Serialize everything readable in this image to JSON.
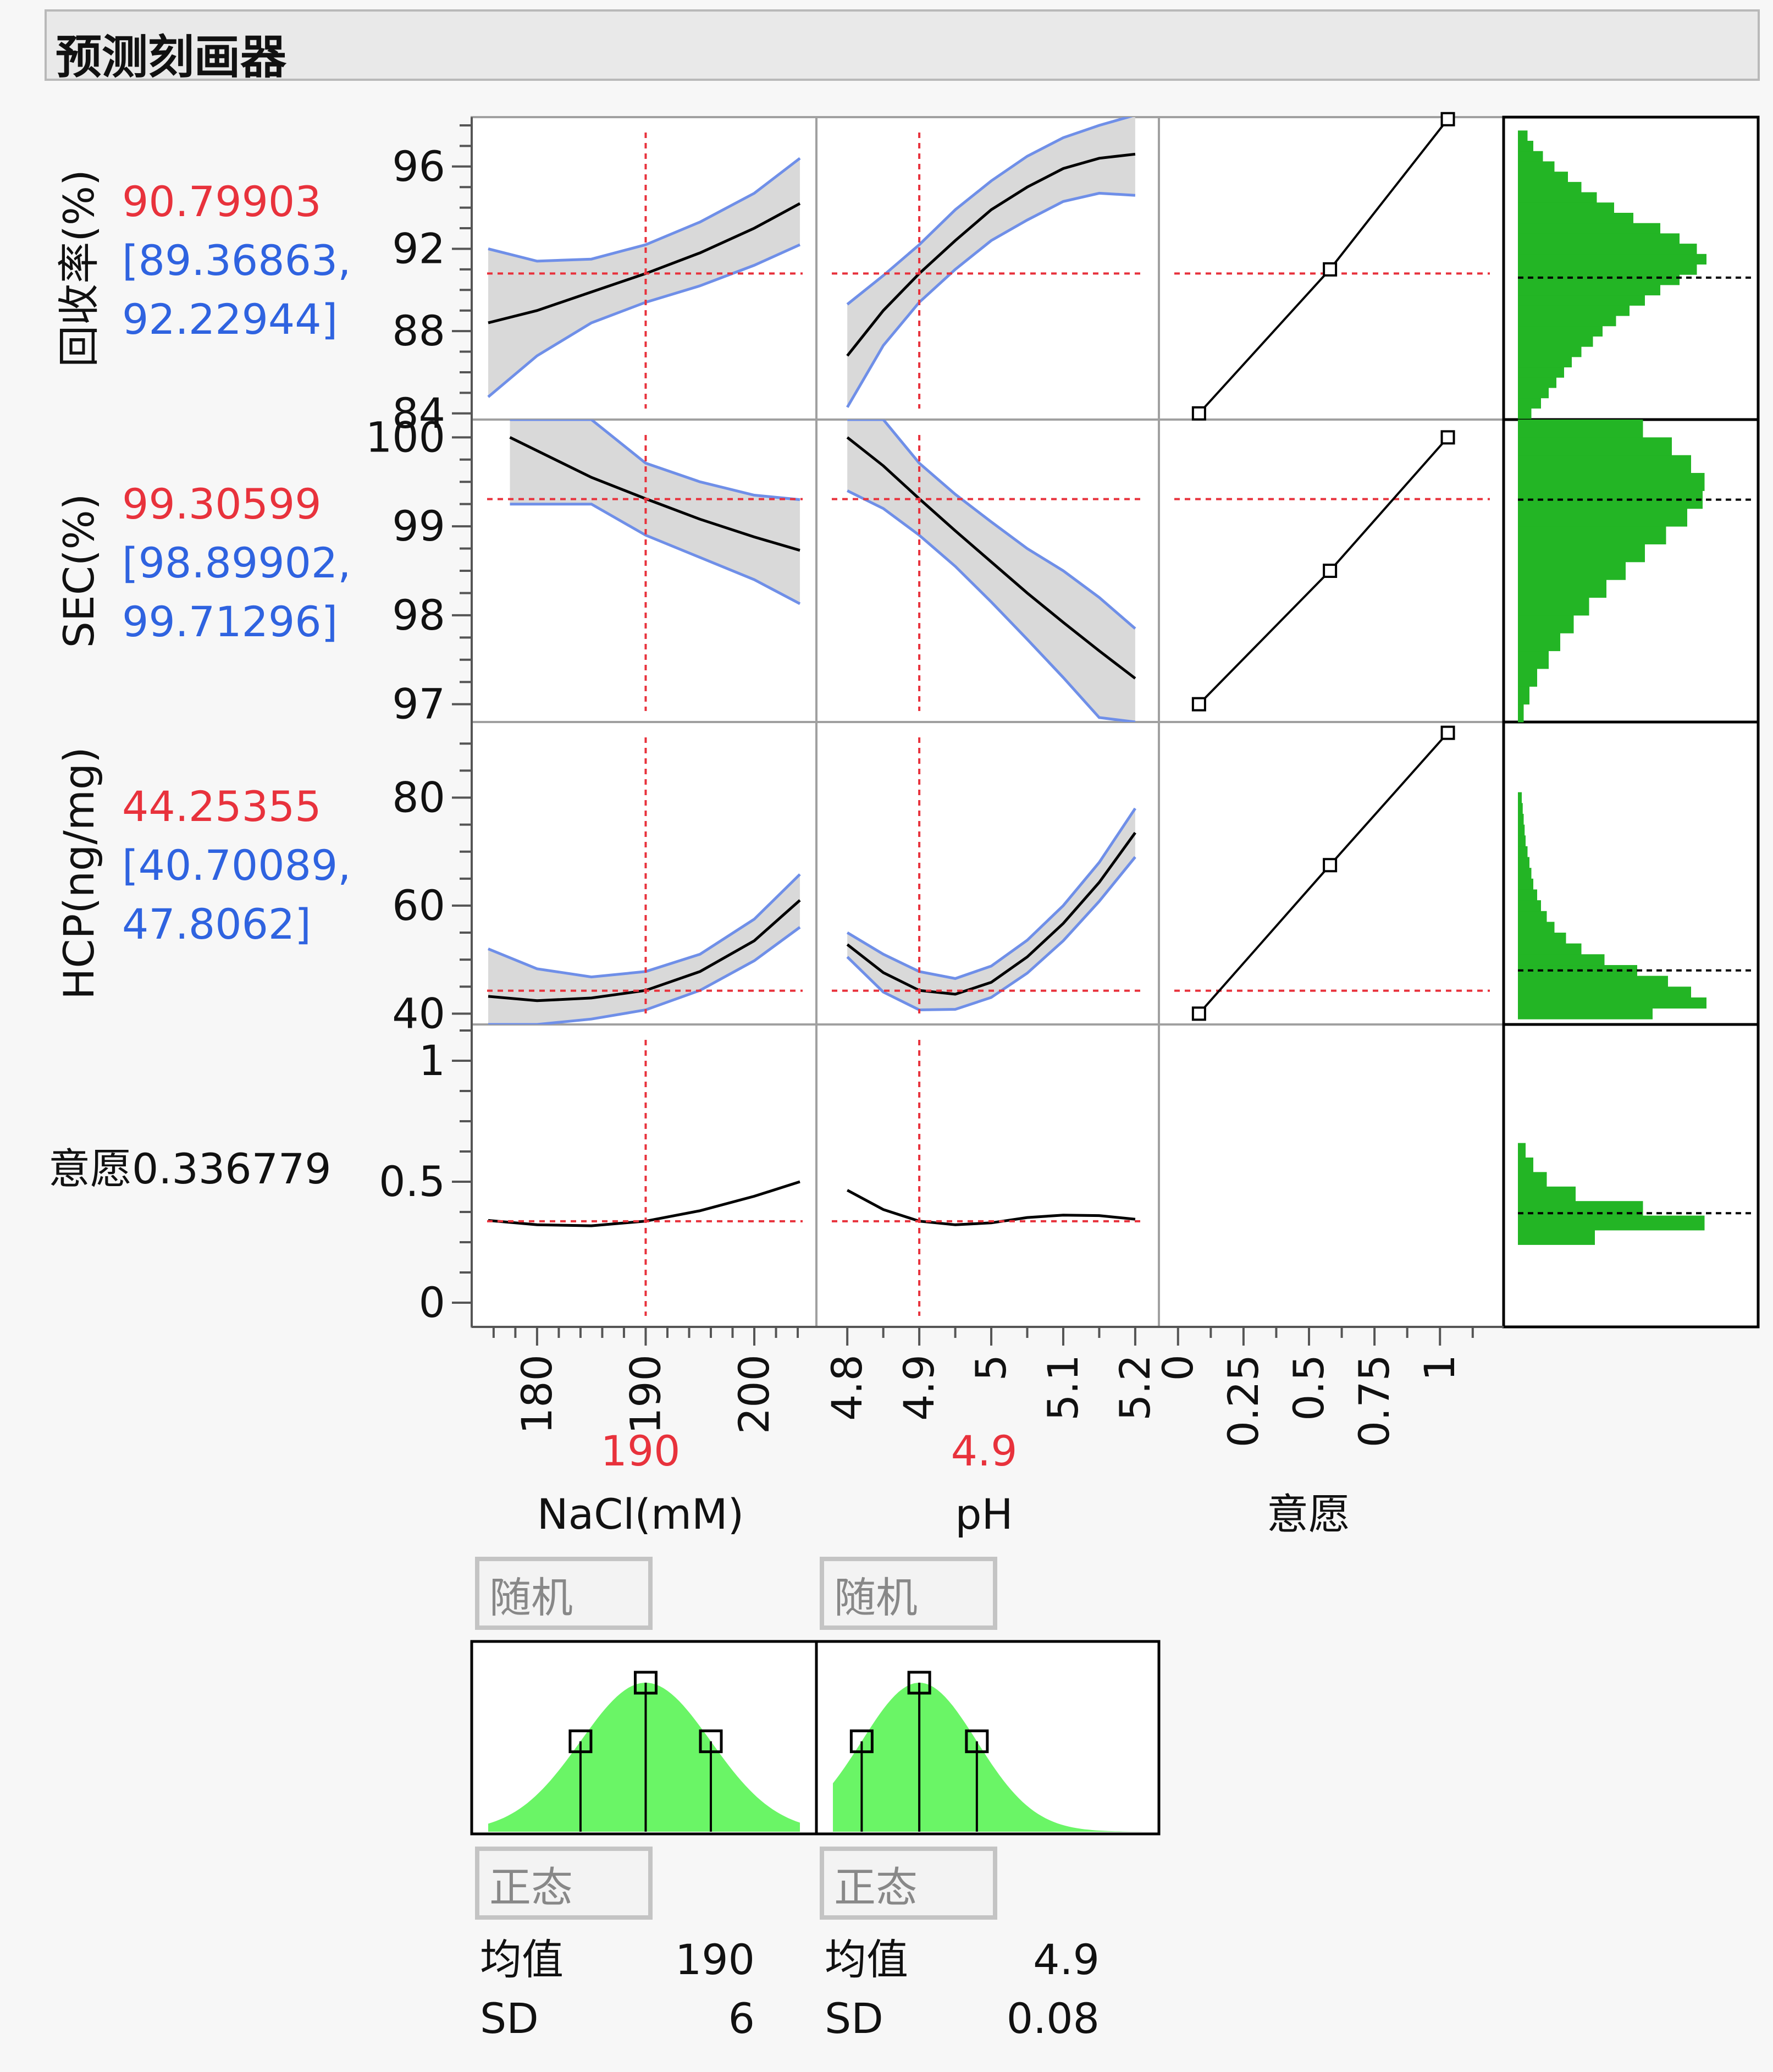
{
  "title": "预测刻画器",
  "colors": {
    "current_value": "#e8323c",
    "ci": "#2f63e0",
    "band": "#d9d9d9",
    "band_edge": "#6f8fe8",
    "curve": "#000000",
    "ref_line": "#e8323c",
    "histogram": "#23b525",
    "normal_fill": "#6af566",
    "panel_border": "#a0a0a0",
    "frame": "#000000"
  },
  "responses": [
    {
      "label": "回收率(%)",
      "value": "90.79903",
      "ci_low": "[89.36863,",
      "ci_high": "92.22944]"
    },
    {
      "label": "SEC(%)",
      "value": "99.30599",
      "ci_low": "[98.89902,",
      "ci_high": "99.71296]"
    },
    {
      "label": "HCP(ng/mg)",
      "value": "44.25355",
      "ci_low": "[40.70089,",
      "ci_high": "47.8062]"
    },
    {
      "label": "意愿",
      "value": "0.336779"
    }
  ],
  "factors": [
    {
      "name": "NaCl(mM)",
      "current": "190"
    },
    {
      "name": "pH",
      "current": "4.9"
    },
    {
      "name": "意愿",
      "current": ""
    }
  ],
  "distributions": [
    {
      "type_label": "正态",
      "random_label": "随机",
      "mean_label": "均值",
      "mean": "190",
      "sd_label": "SD",
      "sd": "6"
    },
    {
      "type_label": "正态",
      "random_label": "随机",
      "mean_label": "均值",
      "mean": "4.9",
      "sd_label": "SD",
      "sd": "0.08"
    }
  ],
  "chart_data": {
    "type": "line",
    "rows": [
      {
        "response": "回收率(%)",
        "ylim": [
          83.7,
          98.4
        ],
        "ticks": [
          84,
          88,
          92,
          96
        ],
        "current": 90.79903
      },
      {
        "response": "SEC(%)",
        "ylim": [
          96.8,
          100.2
        ],
        "ticks": [
          97,
          98,
          99,
          100
        ],
        "current": 99.30599
      },
      {
        "response": "HCP(ng/mg)",
        "ylim": [
          38,
          94
        ],
        "ticks": [
          40,
          60,
          80
        ],
        "current": 44.25355
      },
      {
        "response": "意愿",
        "ylim": [
          -0.1,
          1.15
        ],
        "ticks": [
          0,
          0.5,
          1
        ],
        "current": 0.336779
      }
    ],
    "columns": [
      {
        "factor": "NaCl(mM)",
        "xlim": [
          175.5,
          204.2
        ],
        "ticks": [
          180,
          190,
          200
        ],
        "tick_labels": [
          "180",
          "190",
          "200"
        ],
        "current": 190
      },
      {
        "factor": "pH",
        "xlim": [
          4.78,
          5.21
        ],
        "ticks": [
          4.8,
          4.9,
          5.0,
          5.1,
          5.2
        ],
        "tick_labels": [
          "4.8",
          "4.9",
          "5",
          "5.1",
          "5.2"
        ],
        "current": 4.9
      },
      {
        "factor": "意愿",
        "xlim": [
          -0.01,
          1.18
        ],
        "ticks": [
          0,
          0.25,
          0.5,
          0.75,
          1
        ],
        "tick_labels": [
          "0",
          "0.25",
          "0.5",
          "0.75",
          "1"
        ]
      }
    ],
    "curves": [
      [
        {
          "x": [
            175.5,
            180,
            185,
            190,
            195,
            200,
            204.2
          ],
          "y": [
            88.4,
            89.0,
            89.9,
            90.8,
            91.8,
            93.0,
            94.2
          ],
          "lo": [
            84.8,
            86.8,
            88.4,
            89.4,
            90.2,
            91.2,
            92.2
          ],
          "hi": [
            92.0,
            91.4,
            91.5,
            92.2,
            93.3,
            94.7,
            96.4
          ]
        },
        {
          "x": [
            4.8,
            4.85,
            4.9,
            4.95,
            5.0,
            5.05,
            5.1,
            5.15,
            5.2
          ],
          "y": [
            86.8,
            89.0,
            90.8,
            92.4,
            93.9,
            95.0,
            95.9,
            96.4,
            96.6
          ],
          "lo": [
            84.3,
            87.3,
            89.4,
            91.0,
            92.4,
            93.4,
            94.3,
            94.7,
            94.6
          ],
          "hi": [
            89.3,
            90.7,
            92.2,
            93.9,
            95.3,
            96.5,
            97.4,
            98.0,
            98.5
          ]
        }
      ],
      [
        {
          "x": [
            177.5,
            180,
            185,
            190,
            195,
            200,
            204.2
          ],
          "y": [
            100.0,
            99.85,
            99.55,
            99.31,
            99.08,
            98.88,
            98.73
          ],
          "lo": [
            99.25,
            99.25,
            99.25,
            98.9,
            98.65,
            98.4,
            98.13
          ],
          "hi": [
            100.2,
            100.2,
            100.2,
            99.71,
            99.5,
            99.35,
            99.3
          ]
        },
        {
          "x": [
            4.8,
            4.85,
            4.9,
            4.95,
            5.0,
            5.05,
            5.1,
            5.15,
            5.2
          ],
          "y": [
            100.0,
            99.68,
            99.31,
            98.95,
            98.6,
            98.25,
            97.92,
            97.6,
            97.29
          ],
          "lo": [
            99.4,
            99.2,
            98.9,
            98.55,
            98.15,
            97.73,
            97.3,
            96.85,
            96.8
          ],
          "hi": [
            100.2,
            100.2,
            99.71,
            99.36,
            99.05,
            98.75,
            98.5,
            98.2,
            97.85
          ]
        }
      ],
      [
        {
          "x": [
            175.5,
            180,
            185,
            190,
            195,
            200,
            204.2
          ],
          "y": [
            43.2,
            42.4,
            42.9,
            44.3,
            47.8,
            53.5,
            61.0
          ],
          "lo": [
            38.0,
            38.0,
            39.0,
            40.7,
            44.3,
            49.8,
            56.0
          ],
          "hi": [
            52.0,
            48.3,
            46.8,
            47.8,
            51.0,
            57.5,
            65.8
          ]
        },
        {
          "x": [
            4.8,
            4.85,
            4.9,
            4.95,
            5.0,
            5.05,
            5.1,
            5.15,
            5.2
          ],
          "y": [
            52.8,
            47.6,
            44.3,
            43.6,
            45.8,
            50.5,
            56.7,
            64.3,
            73.5
          ],
          "lo": [
            50.5,
            44.0,
            40.7,
            40.8,
            43.0,
            47.5,
            53.5,
            60.8,
            69.0
          ],
          "hi": [
            55.0,
            51.0,
            47.8,
            46.5,
            48.8,
            53.6,
            60.0,
            68.0,
            78.0
          ]
        }
      ],
      [
        {
          "x": [
            175.5,
            180,
            185,
            190,
            195,
            200,
            204.2
          ],
          "y": [
            0.34,
            0.322,
            0.318,
            0.337,
            0.38,
            0.44,
            0.5
          ]
        },
        {
          "x": [
            4.8,
            4.85,
            4.9,
            4.95,
            5.0,
            5.05,
            5.1,
            5.15,
            5.2
          ],
          "y": [
            0.465,
            0.385,
            0.337,
            0.322,
            0.33,
            0.352,
            0.362,
            0.36,
            0.345
          ]
        }
      ]
    ],
    "desirability": [
      {
        "x": [
          0.08,
          0.58,
          1.03
        ],
        "y": [
          84,
          91,
          98.3
        ]
      },
      {
        "x": [
          0.08,
          0.58,
          1.03
        ],
        "y": [
          97,
          98.5,
          100
        ]
      },
      {
        "x": [
          0.08,
          0.58,
          1.03
        ],
        "y": [
          40,
          67.5,
          92
        ]
      }
    ],
    "histograms": [
      {
        "mean": 90.6,
        "bins": [
          [
            84.0,
            0.07
          ],
          [
            84.5,
            0.12
          ],
          [
            85.0,
            0.16
          ],
          [
            85.5,
            0.2
          ],
          [
            86.0,
            0.24
          ],
          [
            86.5,
            0.28
          ],
          [
            87.0,
            0.33
          ],
          [
            87.5,
            0.39
          ],
          [
            88.0,
            0.44
          ],
          [
            88.5,
            0.51
          ],
          [
            89.0,
            0.58
          ],
          [
            89.5,
            0.66
          ],
          [
            90.0,
            0.74
          ],
          [
            90.5,
            0.84
          ],
          [
            91.0,
            0.93
          ],
          [
            91.5,
            0.98
          ],
          [
            92.0,
            0.93
          ],
          [
            92.5,
            0.84
          ],
          [
            93.0,
            0.74
          ],
          [
            93.5,
            0.6
          ],
          [
            94.0,
            0.5
          ],
          [
            94.5,
            0.41
          ],
          [
            95.0,
            0.33
          ],
          [
            95.5,
            0.26
          ],
          [
            96.0,
            0.19
          ],
          [
            96.5,
            0.13
          ],
          [
            97.0,
            0.08
          ],
          [
            97.5,
            0.05
          ]
        ]
      },
      {
        "mean": 99.3,
        "bins": [
          [
            96.9,
            0.03
          ],
          [
            97.1,
            0.06
          ],
          [
            97.3,
            0.1
          ],
          [
            97.5,
            0.16
          ],
          [
            97.7,
            0.22
          ],
          [
            97.9,
            0.29
          ],
          [
            98.1,
            0.37
          ],
          [
            98.3,
            0.46
          ],
          [
            98.5,
            0.56
          ],
          [
            98.7,
            0.66
          ],
          [
            98.9,
            0.77
          ],
          [
            99.1,
            0.88
          ],
          [
            99.3,
            0.96
          ],
          [
            99.5,
            0.97
          ],
          [
            99.7,
            0.9
          ],
          [
            99.9,
            0.8
          ],
          [
            100.1,
            0.65
          ]
        ]
      },
      {
        "mean": 48,
        "bins": [
          [
            40,
            0.7
          ],
          [
            42,
            0.98
          ],
          [
            44,
            0.9
          ],
          [
            46,
            0.78
          ],
          [
            48,
            0.62
          ],
          [
            50,
            0.45
          ],
          [
            52,
            0.33
          ],
          [
            54,
            0.25
          ],
          [
            56,
            0.19
          ],
          [
            58,
            0.15
          ],
          [
            60,
            0.12
          ],
          [
            62,
            0.1
          ],
          [
            64,
            0.08
          ],
          [
            66,
            0.07
          ],
          [
            68,
            0.06
          ],
          [
            70,
            0.05
          ],
          [
            72,
            0.04
          ],
          [
            74,
            0.035
          ],
          [
            76,
            0.03
          ],
          [
            78,
            0.025
          ],
          [
            80,
            0.02
          ]
        ]
      },
      {
        "mean": 0.37,
        "bins": [
          [
            0.27,
            0.4
          ],
          [
            0.33,
            0.97
          ],
          [
            0.39,
            0.65
          ],
          [
            0.45,
            0.3
          ],
          [
            0.51,
            0.15
          ],
          [
            0.57,
            0.08
          ],
          [
            0.63,
            0.04
          ]
        ]
      }
    ]
  }
}
